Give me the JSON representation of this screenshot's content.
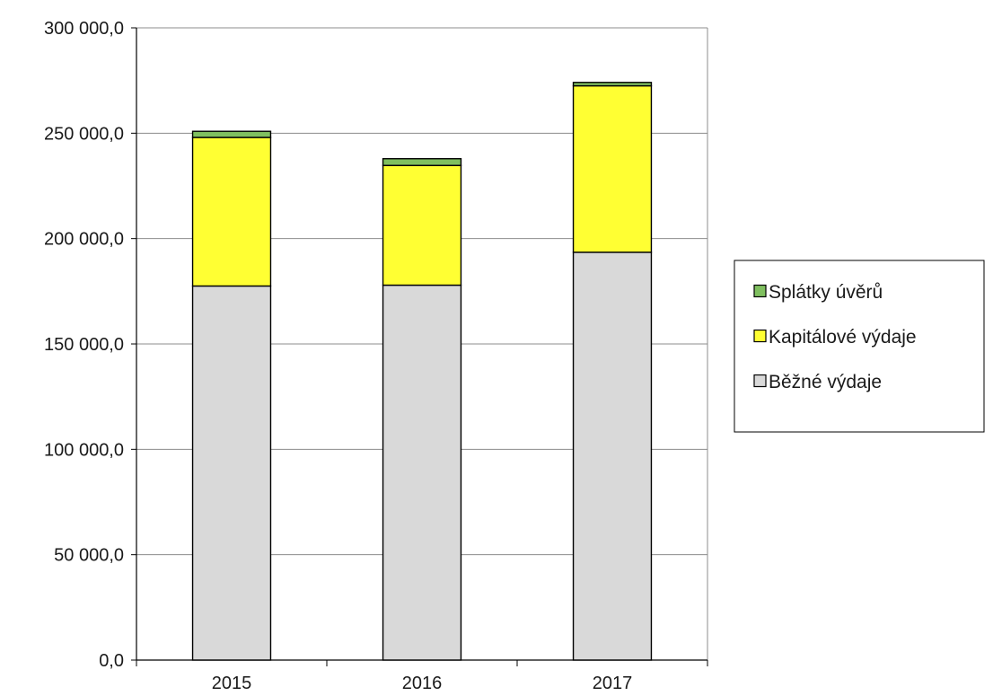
{
  "chart_data": {
    "type": "bar",
    "stacked": true,
    "categories": [
      "2015",
      "2016",
      "2017"
    ],
    "series": [
      {
        "name": "Běžné výdaje",
        "values": [
          177500,
          177900,
          193500
        ],
        "color": "#d9d9d9"
      },
      {
        "name": "Kapitálové výdaje",
        "values": [
          70500,
          56800,
          79000
        ],
        "color": "#ffff33"
      },
      {
        "name": "Splátky úvěrů",
        "values": [
          2900,
          3200,
          1600
        ],
        "color": "#7fbf5f"
      }
    ],
    "legend_order": [
      "Splátky úvěrů",
      "Kapitálové výdaje",
      "Běžné výdaje"
    ],
    "ylim": [
      0,
      300000
    ],
    "yticks": [
      0,
      50000,
      100000,
      150000,
      200000,
      250000,
      300000
    ],
    "ytick_labels": [
      "0,0",
      "50 000,0",
      "100 000,0",
      "150 000,0",
      "200 000,0",
      "250 000,0",
      "300 000,0"
    ],
    "grid": true,
    "legend_position": "right",
    "title": "",
    "xlabel": "",
    "ylabel": ""
  }
}
